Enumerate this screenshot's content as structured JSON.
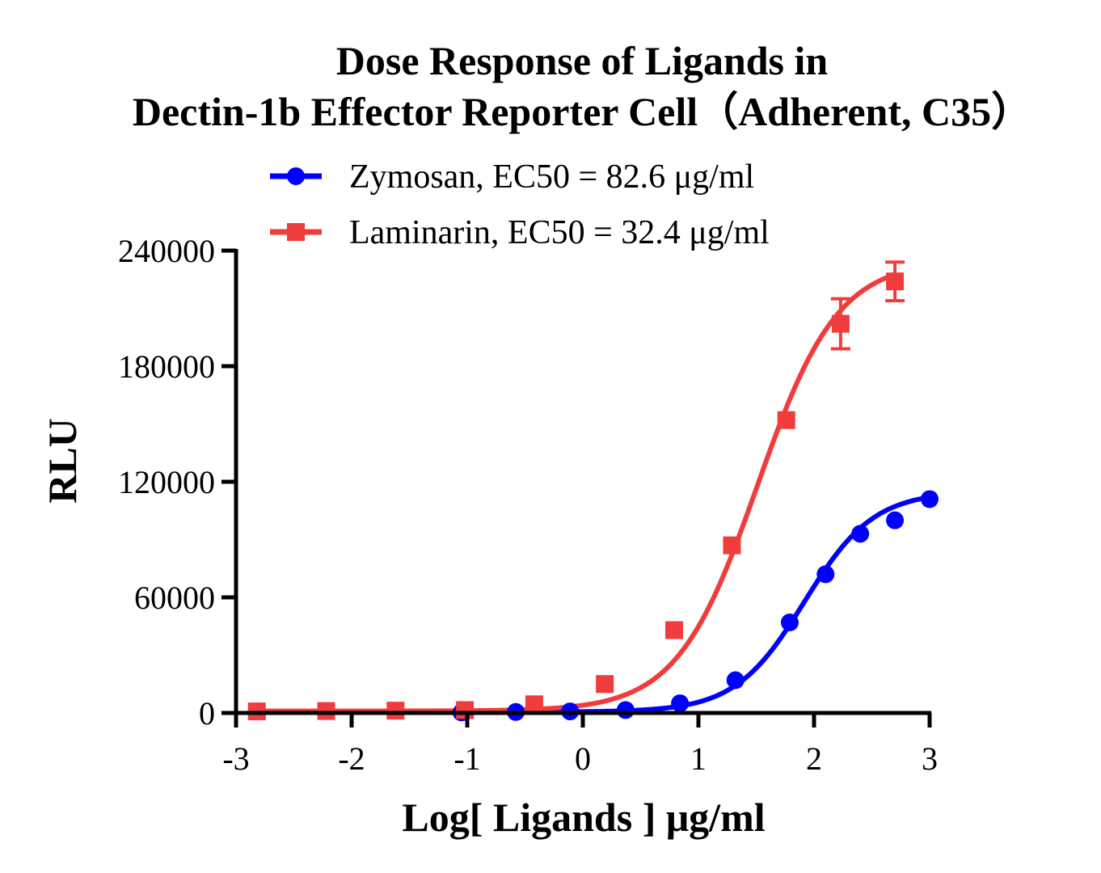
{
  "chart_data": {
    "type": "scatter",
    "title_lines": [
      "Dose Response of Ligands in",
      "Dectin-1b Effector Reporter Cell（Adherent, C35）"
    ],
    "xlabel": "Log[ Ligands ] μg/ml",
    "ylabel": "RLU",
    "xlim": [
      -3,
      3
    ],
    "ylim": [
      0,
      240000
    ],
    "xticks": [
      -3,
      -2,
      -1,
      0,
      1,
      2,
      3
    ],
    "yticks": [
      0,
      60000,
      120000,
      180000,
      240000
    ],
    "xtick_labels": [
      "-3",
      "-2",
      "-1",
      "0",
      "1",
      "2",
      "3"
    ],
    "ytick_labels": [
      "0",
      "60000",
      "120000",
      "180000",
      "240000"
    ],
    "legend_position": "top",
    "series": [
      {
        "name": "Zymosan, EC50 = 82.6 μg/ml",
        "color": "#0000ff",
        "marker": "circle",
        "x": [
          -1.05,
          -0.58,
          -0.11,
          0.37,
          0.84,
          1.32,
          1.79,
          2.1,
          2.4,
          2.7,
          3.0
        ],
        "y": [
          300,
          500,
          800,
          1500,
          5000,
          17000,
          47000,
          72000,
          93000,
          100000,
          111000
        ],
        "yerr": [
          0,
          0,
          0,
          0,
          0,
          0,
          0,
          0,
          0,
          0,
          0
        ],
        "fit": {
          "bottom": 500,
          "top": 115000,
          "logEC50": 1.917,
          "hill": 1.45
        }
      },
      {
        "name": "Laminarin, EC50 = 32.4 μg/ml",
        "color": "#f03c3c",
        "marker": "square",
        "x": [
          -2.82,
          -2.22,
          -1.62,
          -1.02,
          -0.42,
          0.19,
          0.79,
          1.29,
          1.76,
          2.23,
          2.7
        ],
        "y": [
          800,
          1000,
          1200,
          1500,
          4500,
          15000,
          43000,
          87000,
          152000,
          202000,
          224000
        ],
        "yerr": [
          0,
          0,
          0,
          0,
          0,
          0,
          0,
          0,
          0,
          13000,
          10000
        ],
        "fit": {
          "bottom": 1000,
          "top": 235000,
          "logEC50": 1.51,
          "hill": 1.25
        }
      }
    ]
  }
}
